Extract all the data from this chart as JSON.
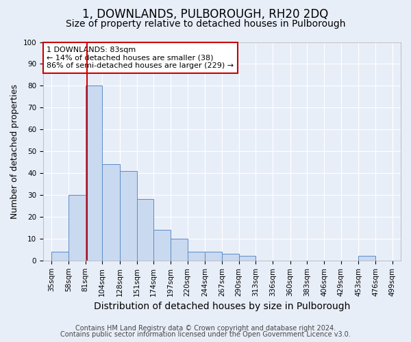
{
  "title": "1, DOWNLANDS, PULBOROUGH, RH20 2DQ",
  "subtitle": "Size of property relative to detached houses in Pulborough",
  "xlabel": "Distribution of detached houses by size in Pulborough",
  "ylabel": "Number of detached properties",
  "footnote1": "Contains HM Land Registry data © Crown copyright and database right 2024.",
  "footnote2": "Contains public sector information licensed under the Open Government Licence v3.0.",
  "bins": [
    35,
    58,
    81,
    104,
    128,
    151,
    174,
    197,
    220,
    244,
    267,
    290,
    313,
    336,
    360,
    383,
    406,
    429,
    453,
    476,
    499
  ],
  "counts": [
    4,
    30,
    80,
    44,
    41,
    28,
    14,
    10,
    4,
    4,
    3,
    2,
    0,
    0,
    0,
    0,
    0,
    0,
    2,
    0
  ],
  "bar_color": "#c9d9ef",
  "bar_edge_color": "#5b8cc8",
  "vline_x": 83,
  "vline_color": "#cc0000",
  "annotation_text": "1 DOWNLANDS: 83sqm\n← 14% of detached houses are smaller (38)\n86% of semi-detached houses are larger (229) →",
  "annotation_box_color": "#ffffff",
  "annotation_box_edge": "#cc0000",
  "ylim": [
    0,
    100
  ],
  "yticks": [
    0,
    10,
    20,
    30,
    40,
    50,
    60,
    70,
    80,
    90,
    100
  ],
  "tick_labels": [
    "35sqm",
    "58sqm",
    "81sqm",
    "104sqm",
    "128sqm",
    "151sqm",
    "174sqm",
    "197sqm",
    "220sqm",
    "244sqm",
    "267sqm",
    "290sqm",
    "313sqm",
    "336sqm",
    "360sqm",
    "383sqm",
    "406sqm",
    "429sqm",
    "453sqm",
    "476sqm",
    "499sqm"
  ],
  "background_color": "#e8eef8",
  "plot_bg_color": "#e8eef8",
  "grid_color": "#ffffff",
  "title_fontsize": 12,
  "subtitle_fontsize": 10,
  "xlabel_fontsize": 10,
  "ylabel_fontsize": 9,
  "tick_fontsize": 7.5,
  "annotation_fontsize": 8,
  "footnote_fontsize": 7
}
